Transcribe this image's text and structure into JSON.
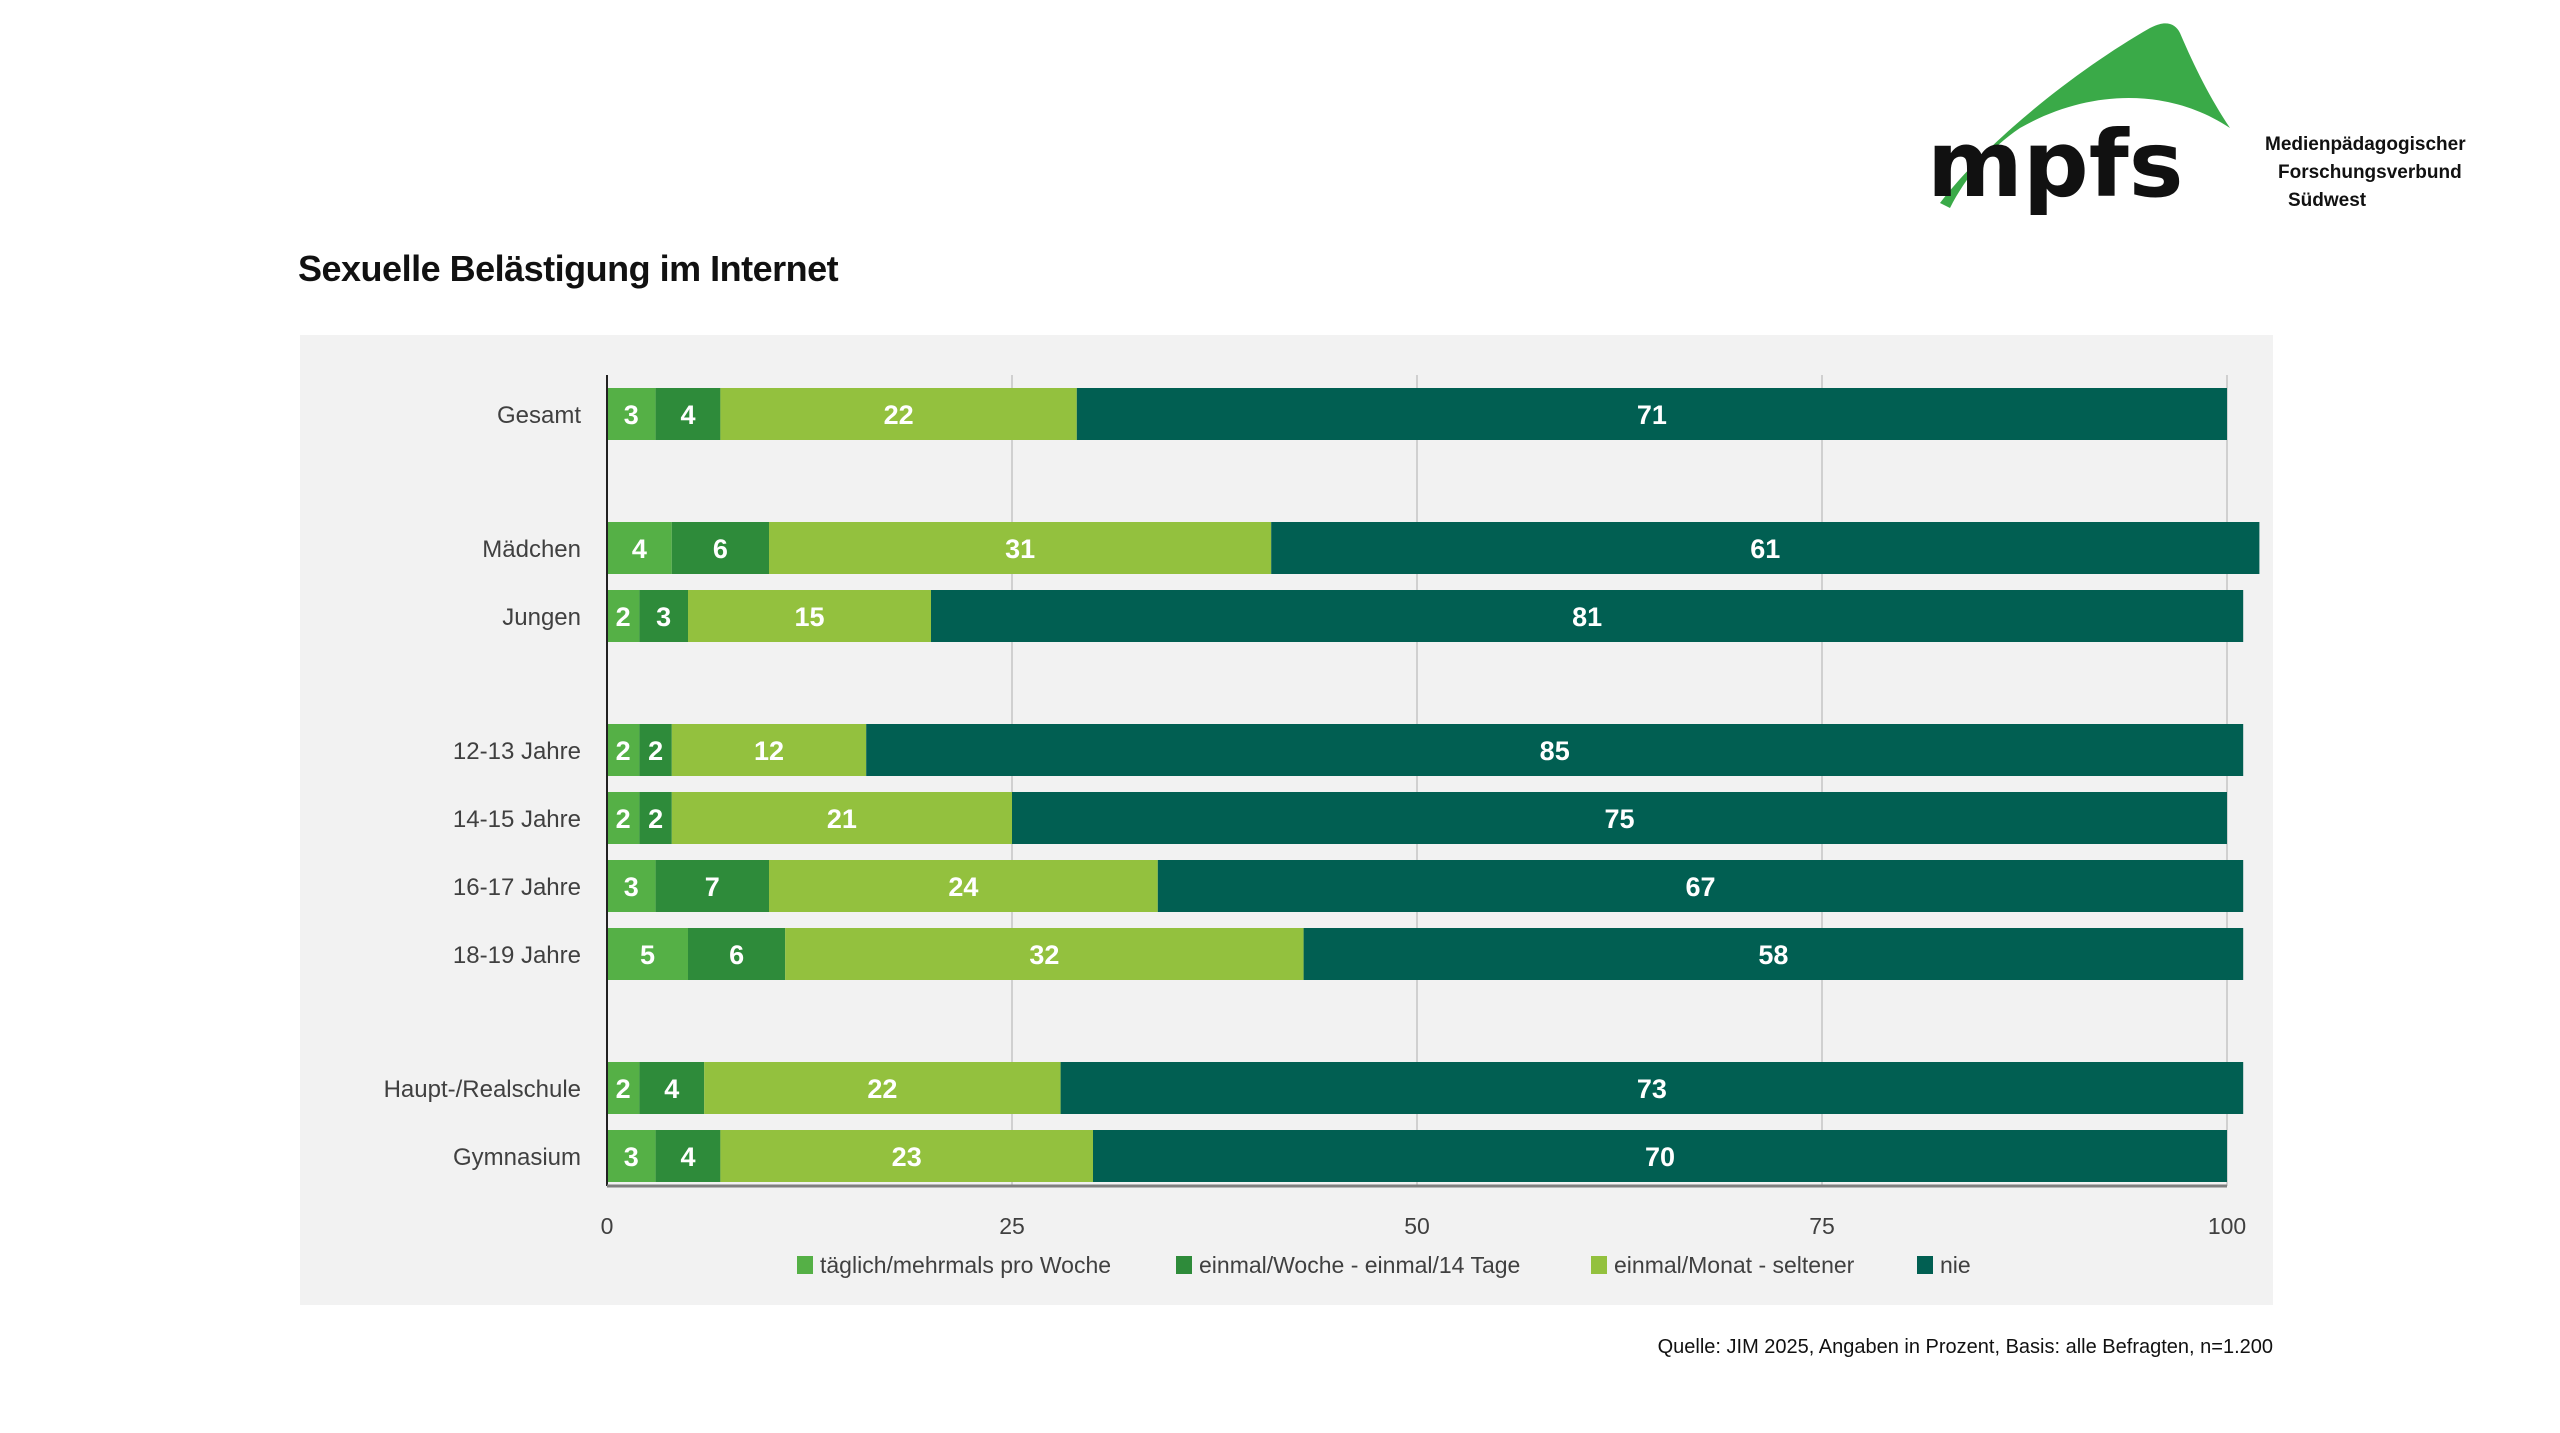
{
  "header": {
    "title": "Sexuelle Belästigung im Internet",
    "logo": {
      "mark": "mpfs",
      "lines": [
        "Medienpädagogischer",
        "Forschungsverbund",
        "Südwest"
      ],
      "color": "#3aaa48"
    }
  },
  "footer": {
    "source": "Quelle: JIM 2025, Angaben in Prozent, Basis: alle Befragten, n=1.200"
  },
  "chart_data": {
    "type": "bar",
    "orientation": "horizontal",
    "stacked": true,
    "title": "Sexuelle Belästigung im Internet",
    "xlabel": "",
    "ylabel": "",
    "xlim": [
      0,
      100
    ],
    "xticks": [
      0,
      25,
      50,
      75,
      100
    ],
    "grid": true,
    "legend_position": "bottom",
    "categories": [
      "Gesamt",
      "Mädchen",
      "Jungen",
      "12-13 Jahre",
      "14-15 Jahre",
      "16-17 Jahre",
      "18-19 Jahre",
      "Haupt-/Realschule",
      "Gymnasium"
    ],
    "groups": [
      [
        0
      ],
      [
        1,
        2
      ],
      [
        3,
        4,
        5,
        6
      ],
      [
        7,
        8
      ]
    ],
    "series": [
      {
        "name": "täglich/mehrmals pro Woche",
        "color": "#55b046",
        "values": [
          3,
          4,
          2,
          2,
          2,
          3,
          5,
          2,
          3
        ]
      },
      {
        "name": "einmal/Woche - einmal/14 Tage",
        "color": "#2e8b3a",
        "values": [
          4,
          6,
          3,
          2,
          2,
          7,
          6,
          4,
          4
        ]
      },
      {
        "name": "einmal/Monat - seltener",
        "color": "#93c13e",
        "values": [
          22,
          31,
          15,
          12,
          21,
          24,
          32,
          22,
          23
        ]
      },
      {
        "name": "nie",
        "color": "#015f52",
        "values": [
          71,
          61,
          81,
          85,
          75,
          67,
          58,
          73,
          70
        ]
      }
    ]
  }
}
